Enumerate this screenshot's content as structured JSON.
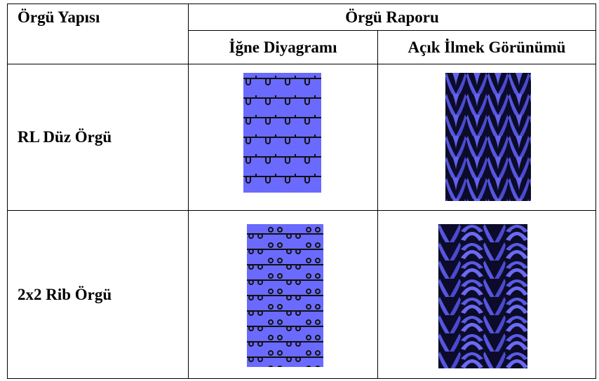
{
  "header": {
    "structure": "Örgü Yapısı",
    "report": "Örgü Raporu",
    "columns": [
      "İğne Diyagramı",
      "Açık İlmek Görünümü"
    ]
  },
  "rows": [
    {
      "label": "RL Düz Örgü"
    },
    {
      "label": "2x2 Rib Örgü"
    }
  ]
}
